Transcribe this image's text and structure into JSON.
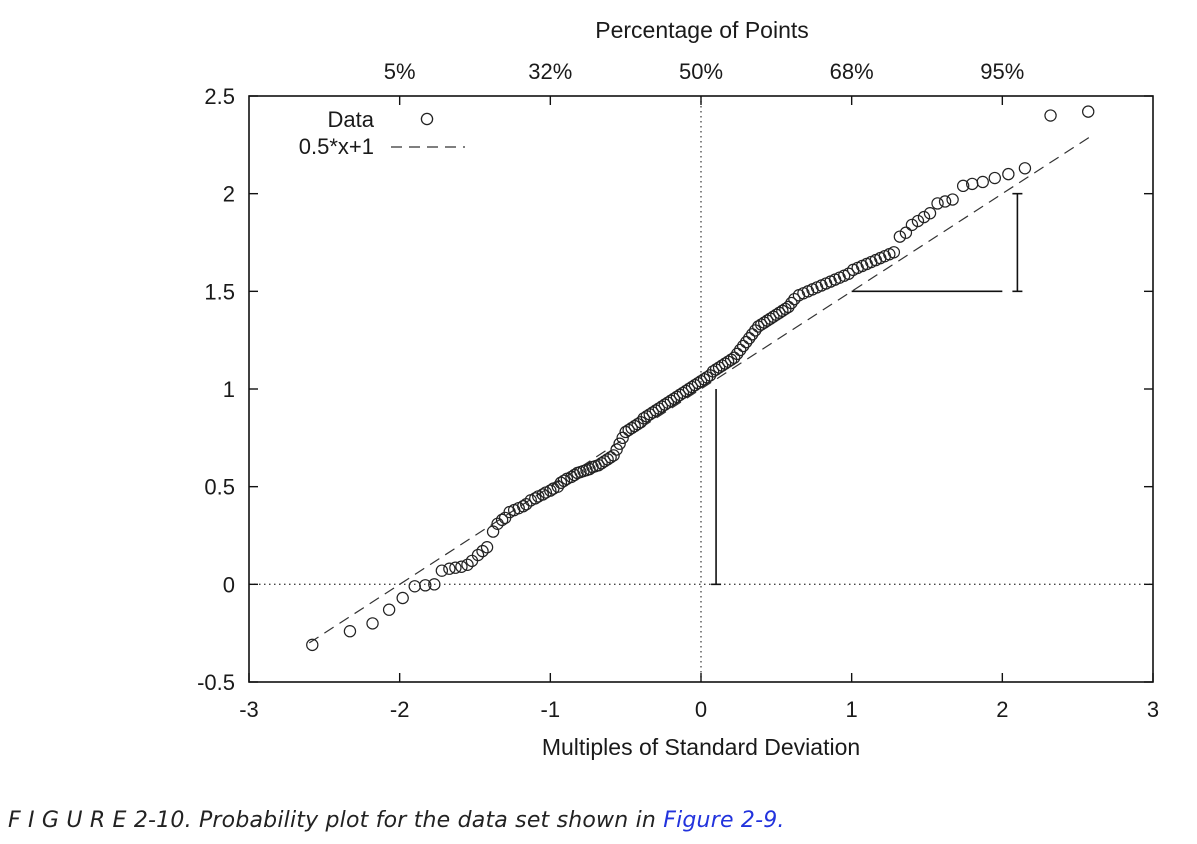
{
  "chart_data": {
    "type": "scatter",
    "xlabel": "Multiples of Standard Deviation",
    "top_axis_title": "Percentage of Points",
    "xlim": [
      -3,
      3
    ],
    "ylim": [
      -0.5,
      2.5
    ],
    "x_ticks": [
      "-3",
      "-2",
      "-1",
      "0",
      "1",
      "2",
      "3"
    ],
    "y_ticks": [
      "-0.5",
      "0",
      "0.5",
      "1",
      "1.5",
      "2",
      "2.5"
    ],
    "top_ticks": [
      {
        "x": -2,
        "label": "5%"
      },
      {
        "x": -1,
        "label": "32%"
      },
      {
        "x": 0,
        "label": "50%"
      },
      {
        "x": 1,
        "label": "68%"
      },
      {
        "x": 2,
        "label": "95%"
      }
    ],
    "legend": {
      "placement": "top-left",
      "data_label": "Data",
      "fit_label": "0.5*x+1"
    },
    "fit_line": {
      "slope": 0.5,
      "intercept": 1,
      "x_range": [
        -2.6,
        2.6
      ]
    },
    "reference_lines": [
      {
        "orientation": "horizontal",
        "y": 0,
        "style": "dotted"
      },
      {
        "orientation": "vertical",
        "x": 0,
        "style": "dotted"
      }
    ],
    "annotations": [
      {
        "type": "segment",
        "points": [
          [
            0.1,
            1.0
          ],
          [
            0.1,
            0.0
          ]
        ],
        "end_caps": "bottom"
      },
      {
        "type": "segment",
        "points": [
          [
            1.0,
            1.5
          ],
          [
            2.0,
            1.5
          ]
        ],
        "end_caps": "none"
      },
      {
        "type": "segment",
        "points": [
          [
            2.1,
            2.0
          ],
          [
            2.1,
            1.5
          ]
        ],
        "end_caps": "both"
      }
    ],
    "series": [
      {
        "name": "Data",
        "points": [
          [
            -2.58,
            -0.31
          ],
          [
            -2.33,
            -0.24
          ],
          [
            -2.18,
            -0.2
          ],
          [
            -2.07,
            -0.13
          ],
          [
            -1.98,
            -0.07
          ],
          [
            -1.9,
            -0.01
          ],
          [
            -1.83,
            -0.005
          ],
          [
            -1.77,
            0.0
          ],
          [
            -1.72,
            0.07
          ],
          [
            -1.67,
            0.08
          ],
          [
            -1.63,
            0.085
          ],
          [
            -1.59,
            0.09
          ],
          [
            -1.55,
            0.1
          ],
          [
            -1.52,
            0.12
          ],
          [
            -1.48,
            0.15
          ],
          [
            -1.45,
            0.17
          ],
          [
            -1.42,
            0.19
          ],
          [
            -1.38,
            0.27
          ],
          [
            -1.35,
            0.31
          ],
          [
            -1.32,
            0.33
          ],
          [
            -1.3,
            0.34
          ],
          [
            -1.27,
            0.37
          ],
          [
            -1.24,
            0.38
          ],
          [
            -1.21,
            0.39
          ],
          [
            -1.18,
            0.4
          ],
          [
            -1.16,
            0.41
          ],
          [
            -1.13,
            0.43
          ],
          [
            -1.1,
            0.44
          ],
          [
            -1.08,
            0.45
          ],
          [
            -1.05,
            0.46
          ],
          [
            -1.03,
            0.47
          ],
          [
            -1.0,
            0.48
          ],
          [
            -0.98,
            0.49
          ],
          [
            -0.95,
            0.5
          ],
          [
            -0.93,
            0.52
          ],
          [
            -0.91,
            0.53
          ],
          [
            -0.89,
            0.54
          ],
          [
            -0.86,
            0.55
          ],
          [
            -0.84,
            0.56
          ],
          [
            -0.82,
            0.57
          ],
          [
            -0.8,
            0.575
          ],
          [
            -0.78,
            0.58
          ],
          [
            -0.76,
            0.585
          ],
          [
            -0.74,
            0.59
          ],
          [
            -0.72,
            0.6
          ],
          [
            -0.7,
            0.605
          ],
          [
            -0.68,
            0.61
          ],
          [
            -0.66,
            0.62
          ],
          [
            -0.64,
            0.63
          ],
          [
            -0.62,
            0.64
          ],
          [
            -0.6,
            0.65
          ],
          [
            -0.58,
            0.66
          ],
          [
            -0.56,
            0.69
          ],
          [
            -0.54,
            0.72
          ],
          [
            -0.52,
            0.75
          ],
          [
            -0.5,
            0.78
          ],
          [
            -0.48,
            0.79
          ],
          [
            -0.46,
            0.8
          ],
          [
            -0.44,
            0.81
          ],
          [
            -0.42,
            0.82
          ],
          [
            -0.4,
            0.83
          ],
          [
            -0.38,
            0.85
          ],
          [
            -0.36,
            0.86
          ],
          [
            -0.34,
            0.87
          ],
          [
            -0.32,
            0.88
          ],
          [
            -0.3,
            0.89
          ],
          [
            -0.28,
            0.9
          ],
          [
            -0.26,
            0.91
          ],
          [
            -0.24,
            0.92
          ],
          [
            -0.22,
            0.93
          ],
          [
            -0.2,
            0.94
          ],
          [
            -0.18,
            0.95
          ],
          [
            -0.16,
            0.96
          ],
          [
            -0.14,
            0.97
          ],
          [
            -0.12,
            0.98
          ],
          [
            -0.1,
            0.99
          ],
          [
            -0.08,
            1.0
          ],
          [
            -0.06,
            1.01
          ],
          [
            -0.04,
            1.02
          ],
          [
            -0.02,
            1.03
          ],
          [
            0.0,
            1.04
          ],
          [
            0.02,
            1.05
          ],
          [
            0.04,
            1.06
          ],
          [
            0.06,
            1.07
          ],
          [
            0.08,
            1.09
          ],
          [
            0.1,
            1.1
          ],
          [
            0.12,
            1.11
          ],
          [
            0.14,
            1.12
          ],
          [
            0.16,
            1.13
          ],
          [
            0.18,
            1.14
          ],
          [
            0.2,
            1.15
          ],
          [
            0.22,
            1.16
          ],
          [
            0.24,
            1.18
          ],
          [
            0.26,
            1.2
          ],
          [
            0.28,
            1.22
          ],
          [
            0.3,
            1.24
          ],
          [
            0.32,
            1.26
          ],
          [
            0.34,
            1.28
          ],
          [
            0.36,
            1.3
          ],
          [
            0.38,
            1.32
          ],
          [
            0.4,
            1.33
          ],
          [
            0.42,
            1.34
          ],
          [
            0.44,
            1.35
          ],
          [
            0.46,
            1.36
          ],
          [
            0.48,
            1.37
          ],
          [
            0.5,
            1.38
          ],
          [
            0.52,
            1.39
          ],
          [
            0.54,
            1.4
          ],
          [
            0.56,
            1.41
          ],
          [
            0.58,
            1.42
          ],
          [
            0.6,
            1.44
          ],
          [
            0.62,
            1.46
          ],
          [
            0.65,
            1.48
          ],
          [
            0.68,
            1.49
          ],
          [
            0.71,
            1.5
          ],
          [
            0.74,
            1.51
          ],
          [
            0.77,
            1.52
          ],
          [
            0.8,
            1.53
          ],
          [
            0.83,
            1.54
          ],
          [
            0.86,
            1.55
          ],
          [
            0.89,
            1.56
          ],
          [
            0.92,
            1.57
          ],
          [
            0.95,
            1.58
          ],
          [
            0.98,
            1.59
          ],
          [
            1.01,
            1.61
          ],
          [
            1.04,
            1.62
          ],
          [
            1.07,
            1.63
          ],
          [
            1.1,
            1.64
          ],
          [
            1.13,
            1.65
          ],
          [
            1.16,
            1.66
          ],
          [
            1.19,
            1.67
          ],
          [
            1.22,
            1.68
          ],
          [
            1.25,
            1.69
          ],
          [
            1.28,
            1.7
          ],
          [
            1.32,
            1.78
          ],
          [
            1.36,
            1.8
          ],
          [
            1.4,
            1.84
          ],
          [
            1.44,
            1.86
          ],
          [
            1.48,
            1.88
          ],
          [
            1.52,
            1.9
          ],
          [
            1.57,
            1.95
          ],
          [
            1.62,
            1.96
          ],
          [
            1.67,
            1.97
          ],
          [
            1.74,
            2.04
          ],
          [
            1.8,
            2.05
          ],
          [
            1.87,
            2.06
          ],
          [
            1.95,
            2.08
          ],
          [
            2.04,
            2.1
          ],
          [
            2.15,
            2.13
          ],
          [
            2.32,
            2.4
          ],
          [
            2.57,
            2.42
          ]
        ]
      }
    ]
  },
  "caption": {
    "prefix": "F I G U R E  2-10. Probability plot for the data set shown in ",
    "link": "Figure 2-9.",
    "color_link": "#2233dd"
  }
}
